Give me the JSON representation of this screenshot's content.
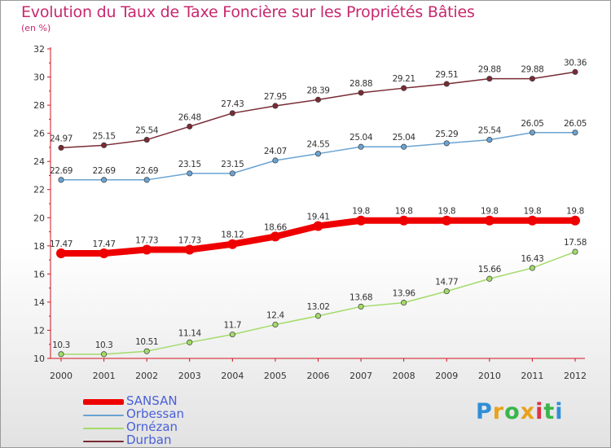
{
  "header": {
    "title": "Evolution du Taux de Taxe Foncière sur les Propriétés Bâties",
    "subtitle": "(en %)"
  },
  "logo": {
    "text": "Proxiti",
    "colors": [
      "#2f8fd8",
      "#e8a21c",
      "#3ab54a",
      "#e8a21c",
      "#d9334a",
      "#3ab54a",
      "#2f8fd8"
    ]
  },
  "chart_data": {
    "type": "line",
    "title": "Evolution du Taux de Taxe Foncière sur les Propriétés Bâties",
    "ylabel": "(en %)",
    "xlabel": "",
    "x": [
      "2000",
      "2001",
      "2002",
      "2003",
      "2004",
      "2005",
      "2006",
      "2007",
      "2008",
      "2009",
      "2010",
      "2011",
      "2012"
    ],
    "ylim": [
      10,
      32
    ],
    "yticks": [
      "10",
      "12",
      "14",
      "16",
      "18",
      "20",
      "22",
      "24",
      "26",
      "28",
      "30",
      "32"
    ],
    "grid": false,
    "legend_position": "bottom-left",
    "series": [
      {
        "name": "Durban",
        "color": "#7a2b35",
        "values": [
          24.97,
          25.15,
          25.54,
          26.48,
          27.43,
          27.95,
          28.39,
          28.88,
          29.21,
          29.51,
          29.88,
          29.88,
          30.36
        ]
      },
      {
        "name": "Orbessan",
        "color": "#6aa3d2",
        "values": [
          22.69,
          22.69,
          22.69,
          23.15,
          23.15,
          24.07,
          24.55,
          25.04,
          25.04,
          25.29,
          25.54,
          26.05,
          26.05
        ]
      },
      {
        "name": "SANSAN",
        "color": "#ee0000",
        "values": [
          17.47,
          17.47,
          17.73,
          17.73,
          18.12,
          18.66,
          19.41,
          19.8,
          19.8,
          19.8,
          19.8,
          19.8,
          19.8
        ]
      },
      {
        "name": "Ornézan",
        "color": "#a3db6a",
        "values": [
          10.3,
          10.3,
          10.51,
          11.14,
          11.7,
          12.4,
          13.02,
          13.68,
          13.96,
          14.77,
          15.66,
          16.43,
          17.58
        ]
      }
    ],
    "data_labels": {
      "Durban": [
        "24.97",
        "25.15",
        "25.54",
        "26.48",
        "27.43",
        "27.95",
        "28.39",
        "28.88",
        "29.21",
        "29.51",
        "29.88",
        "29.88",
        "30.36"
      ],
      "Orbessan": [
        "22.69",
        "22.69",
        "22.69",
        "23.15",
        "23.15",
        "24.07",
        "24.55",
        "25.04",
        "25.04",
        "25.29",
        "25.54",
        "26.05",
        "26.05"
      ],
      "SANSAN": [
        "17.47",
        "17.47",
        "17.73",
        "17.73",
        "18.12",
        "18.66",
        "19.41",
        "19.8",
        "19.8",
        "19.8",
        "19.8",
        "19.8",
        "19.8"
      ],
      "Ornézan": [
        "10.3",
        "10.3",
        "10.51",
        "11.14",
        "11.7",
        "12.4",
        "13.02",
        "13.68",
        "13.96",
        "14.77",
        "15.66",
        "16.43",
        "17.58"
      ]
    },
    "legend": [
      {
        "name": "SANSAN",
        "color": "#ee0000"
      },
      {
        "name": "Orbessan",
        "color": "#6aa3d2"
      },
      {
        "name": "Ornézan",
        "color": "#a3db6a"
      },
      {
        "name": "Durban",
        "color": "#7a2b35"
      }
    ]
  }
}
